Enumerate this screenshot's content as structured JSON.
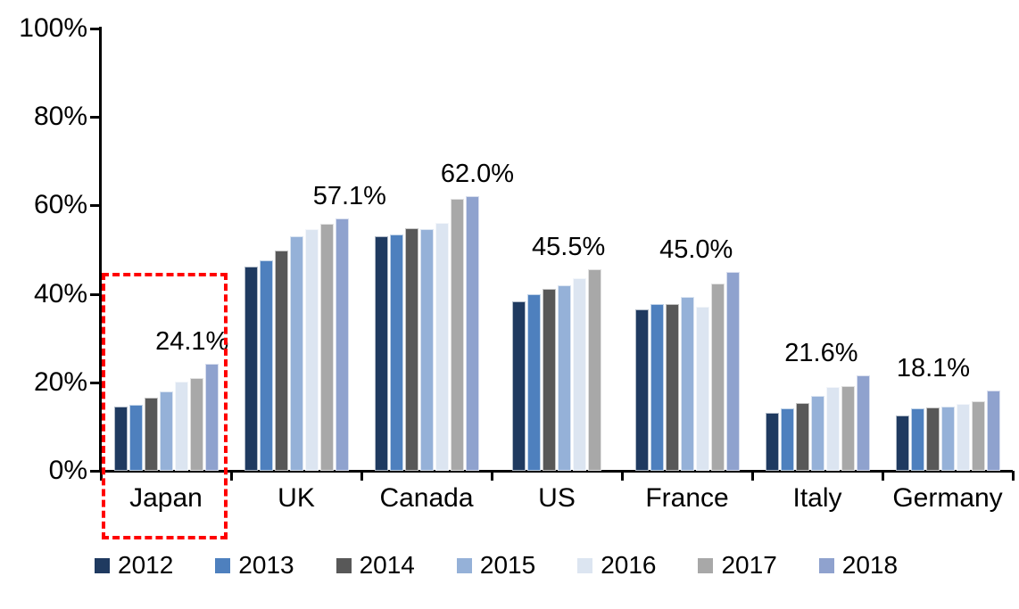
{
  "chart_data": {
    "type": "bar",
    "title": "",
    "categories": [
      "Japan",
      "UK",
      "Canada",
      "US",
      "France",
      "Italy",
      "Germany"
    ],
    "series": [
      {
        "name": "2012",
        "color": "#1F3A60",
        "values": [
          14.6,
          46.2,
          53.0,
          38.3,
          36.5,
          13.2,
          12.5
        ]
      },
      {
        "name": "2013",
        "color": "#4E80BE",
        "values": [
          15.0,
          47.6,
          53.4,
          39.9,
          37.7,
          14.1,
          14.1
        ]
      },
      {
        "name": "2014",
        "color": "#585858",
        "values": [
          16.6,
          49.8,
          54.8,
          41.2,
          37.7,
          15.3,
          14.3
        ]
      },
      {
        "name": "2015",
        "color": "#95B1D8",
        "values": [
          18.0,
          53.0,
          54.6,
          41.9,
          39.3,
          16.9,
          14.5
        ]
      },
      {
        "name": "2016",
        "color": "#DCE5F1",
        "values": [
          20.1,
          54.6,
          56.0,
          43.5,
          37.2,
          19.0,
          15.1
        ]
      },
      {
        "name": "2017",
        "color": "#A8A8A8",
        "values": [
          21.0,
          55.8,
          61.4,
          45.5,
          42.3,
          19.2,
          15.7
        ]
      },
      {
        "name": "2018",
        "color": "#8FA2CE",
        "values": [
          24.1,
          57.1,
          62.0,
          null,
          45.0,
          21.6,
          18.1
        ]
      }
    ],
    "data_labels": [
      "24.1%",
      "57.1%",
      "62.0%",
      "45.5%",
      "45.0%",
      "21.6%",
      "18.1%"
    ],
    "y_ticks": [
      "100%",
      "80%",
      "60%",
      "40%",
      "20%",
      "0%"
    ],
    "ylim": [
      0,
      100
    ],
    "grid": false,
    "legend_position": "bottom",
    "highlight": {
      "category": "Japan",
      "style": "red-dashed-box",
      "color": "#FF0000"
    }
  }
}
